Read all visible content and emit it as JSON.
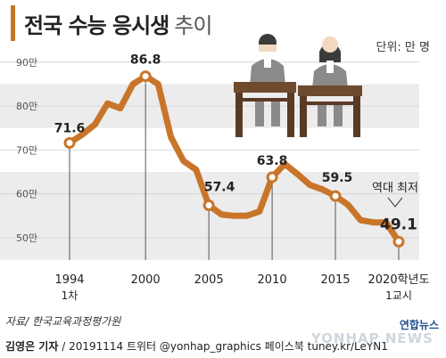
{
  "title": "전국 수능 응시생",
  "title_suffix": "추이",
  "unit": "단위: 만 명",
  "source": "자료/ 한국교육과정평가원",
  "credit_author": "김영은 기자",
  "credit_rest": "/ 20191114  트위터 @yonhap_graphics  페이스북 tuney.kr/LeYN1",
  "watermark_brand": "연합뉴스",
  "watermark_en": "YONHAP NEWS",
  "colors": {
    "line": "#c8752a",
    "band": "#ececec",
    "title_bar": "#c8752a"
  },
  "chart_data": {
    "type": "line",
    "x": [
      1994,
      1995,
      1996,
      1997,
      1998,
      1999,
      2000,
      2001,
      2002,
      2003,
      2004,
      2005,
      2006,
      2007,
      2008,
      2009,
      2010,
      2011,
      2012,
      2013,
      2014,
      2015,
      2016,
      2017,
      2018,
      2019,
      2020
    ],
    "y": [
      71.6,
      73.5,
      75.8,
      80.6,
      79.5,
      85.0,
      86.8,
      85.0,
      73.0,
      67.5,
      65.5,
      57.4,
      55.3,
      55.0,
      55.0,
      56.0,
      63.8,
      66.8,
      64.5,
      62.0,
      61.0,
      59.5,
      57.5,
      54.0,
      53.5,
      53.5,
      49.1
    ],
    "ylim": [
      45,
      92
    ],
    "yticks": [
      50,
      60,
      70,
      80,
      90
    ],
    "ytick_labels": [
      "50만",
      "60만",
      "70만",
      "80만",
      "90만"
    ],
    "xticks": [
      1994,
      2000,
      2005,
      2010,
      2015,
      2020
    ],
    "xtick_labels": [
      "1994",
      "2000",
      "2005",
      "2010",
      "2015",
      "2020학년도"
    ],
    "xtick_sublabels": {
      "1994": "1차",
      "2020": "1교시"
    },
    "data_labels": [
      {
        "x": 1994,
        "label": "71.6"
      },
      {
        "x": 2000,
        "label": "86.8"
      },
      {
        "x": 2005,
        "label": "57.4"
      },
      {
        "x": 2010,
        "label": "63.8"
      },
      {
        "x": 2015,
        "label": "59.5"
      },
      {
        "x": 2020,
        "label": "49.1"
      }
    ],
    "annotation": "역대 최저",
    "grid": "alternating bands"
  }
}
